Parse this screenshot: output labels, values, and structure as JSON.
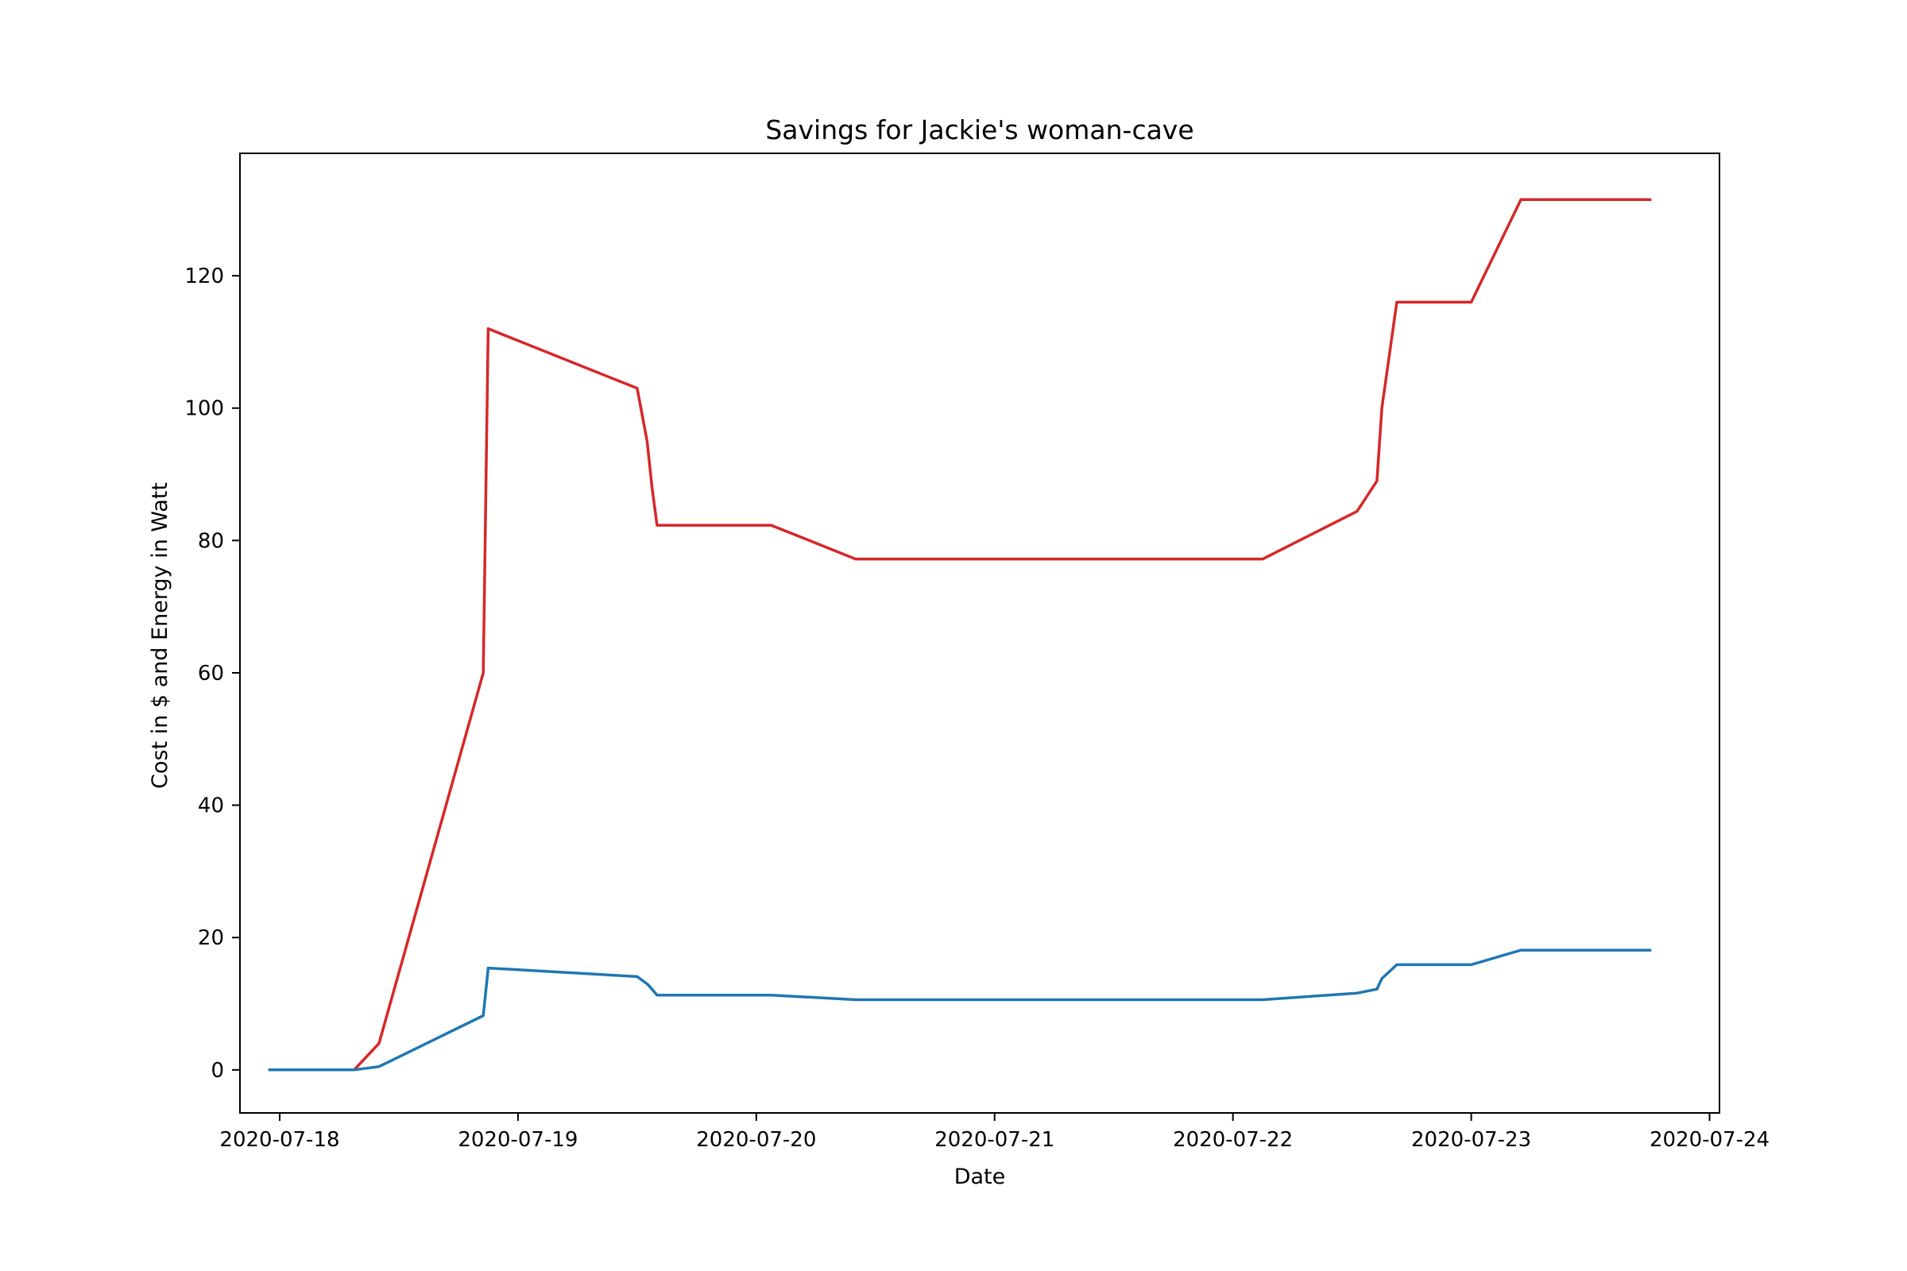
{
  "chart_data": {
    "type": "line",
    "title": "Savings for Jackie's woman-cave",
    "xlabel": "Date",
    "ylabel": "Cost in $ and Energy in Watt",
    "x_axis_type": "date",
    "xlim": [
      "2020-07-17T20:00",
      "2020-07-24T01:00"
    ],
    "ylim": [
      -6.5,
      138.5
    ],
    "x_ticks": [
      "2020-07-18",
      "2020-07-19",
      "2020-07-20",
      "2020-07-21",
      "2020-07-22",
      "2020-07-23",
      "2020-07-24"
    ],
    "y_ticks": [
      0,
      20,
      40,
      60,
      80,
      100,
      120
    ],
    "grid": false,
    "legend": "none",
    "series": [
      {
        "color": "#d62728",
        "points": [
          [
            "2020-07-17T23:00",
            0
          ],
          [
            "2020-07-18T07:30",
            0
          ],
          [
            "2020-07-18T10:00",
            4
          ],
          [
            "2020-07-18T20:30",
            60
          ],
          [
            "2020-07-18T21:00",
            112
          ],
          [
            "2020-07-19T12:00",
            103
          ],
          [
            "2020-07-19T13:00",
            95
          ],
          [
            "2020-07-19T13:30",
            88
          ],
          [
            "2020-07-19T14:00",
            82.3
          ],
          [
            "2020-07-20T01:30",
            82.3
          ],
          [
            "2020-07-20T10:00",
            77.2
          ],
          [
            "2020-07-22T03:00",
            77.2
          ],
          [
            "2020-07-22T12:30",
            84.4
          ],
          [
            "2020-07-22T14:30",
            89
          ],
          [
            "2020-07-22T15:00",
            100
          ],
          [
            "2020-07-22T16:30",
            116
          ],
          [
            "2020-07-23T00:00",
            116
          ],
          [
            "2020-07-23T05:00",
            131.5
          ],
          [
            "2020-07-23T18:00",
            131.5
          ]
        ]
      },
      {
        "color": "#1f77b4",
        "points": [
          [
            "2020-07-17T23:00",
            0
          ],
          [
            "2020-07-18T07:30",
            0
          ],
          [
            "2020-07-18T10:00",
            0.5
          ],
          [
            "2020-07-18T20:30",
            8.2
          ],
          [
            "2020-07-18T21:00",
            15.4
          ],
          [
            "2020-07-19T12:00",
            14.1
          ],
          [
            "2020-07-19T13:00",
            13
          ],
          [
            "2020-07-19T13:30",
            12.2
          ],
          [
            "2020-07-19T14:00",
            11.3
          ],
          [
            "2020-07-20T01:30",
            11.3
          ],
          [
            "2020-07-20T10:00",
            10.6
          ],
          [
            "2020-07-22T03:00",
            10.6
          ],
          [
            "2020-07-22T12:30",
            11.6
          ],
          [
            "2020-07-22T14:30",
            12.2
          ],
          [
            "2020-07-22T15:00",
            13.8
          ],
          [
            "2020-07-22T16:30",
            15.9
          ],
          [
            "2020-07-23T00:00",
            15.9
          ],
          [
            "2020-07-23T05:00",
            18.1
          ],
          [
            "2020-07-23T18:00",
            18.1
          ]
        ]
      }
    ]
  }
}
